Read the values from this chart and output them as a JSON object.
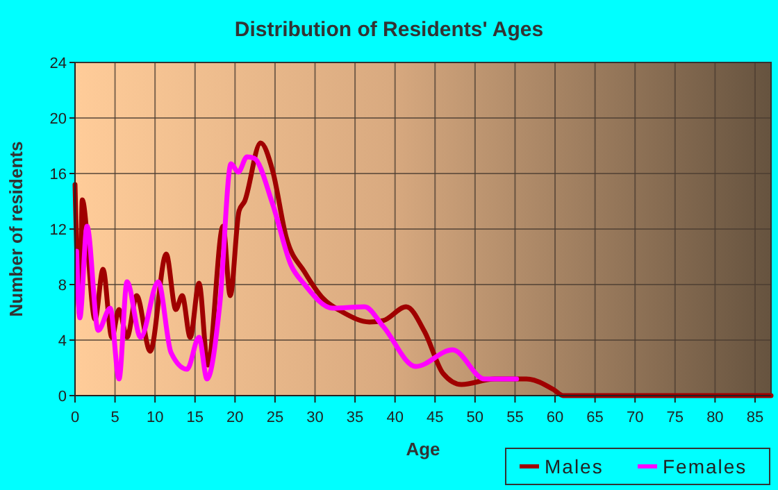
{
  "chart_data": {
    "type": "line",
    "title": "Distribution of Residents' Ages",
    "xlabel": "Age",
    "ylabel": "Number of residents",
    "xlim": [
      0,
      87
    ],
    "ylim": [
      0,
      24
    ],
    "xticks": [
      0,
      5,
      10,
      15,
      20,
      25,
      30,
      35,
      40,
      45,
      50,
      55,
      60,
      65,
      70,
      75,
      80,
      85
    ],
    "yticks": [
      0,
      4,
      8,
      12,
      16,
      20,
      24
    ],
    "grid": true,
    "legend": "bottom right",
    "line_style": "solid",
    "marker": "none",
    "series": [
      {
        "name": "Males",
        "color": "#a00000",
        "x": [
          0,
          0.6,
          0.9,
          2.5,
          3.5,
          4.6,
          5.5,
          6.5,
          7.7,
          9.4,
          11.4,
          12.6,
          13.4,
          14.4,
          15.5,
          16.6,
          18.5,
          19.4,
          20.5,
          21.2,
          23.2,
          24.7,
          26.4,
          28.7,
          31,
          33.5,
          36.8,
          38.5,
          41.4,
          43.7,
          46,
          48.3,
          52.4,
          56.4,
          59.9,
          61,
          70,
          80,
          87
        ],
        "values": [
          15.2,
          5.8,
          14.1,
          5.5,
          9.1,
          4.2,
          6.2,
          4.2,
          7.2,
          3.2,
          10.2,
          6.2,
          7.2,
          4.2,
          8.1,
          2.2,
          12.2,
          7.2,
          13.3,
          14,
          18.2,
          16.2,
          11.4,
          8.9,
          7,
          6,
          5.3,
          5.4,
          6.4,
          4.6,
          1.6,
          0.8,
          1.2,
          1.2,
          0.4,
          0,
          0,
          0,
          0
        ]
      },
      {
        "name": "Females",
        "color": "#ff00ff",
        "x": [
          0.2,
          0.6,
          1.5,
          2.9,
          4.4,
          5.5,
          6.5,
          8.2,
          10.4,
          12,
          14,
          15.5,
          16.5,
          18.1,
          19.5,
          20.4,
          21.5,
          22.4,
          24.7,
          27,
          28.7,
          32.2,
          36.2,
          38.5,
          42.6,
          47.2,
          51.2,
          55.2
        ],
        "values": [
          10.4,
          5.6,
          12.2,
          4.7,
          6.3,
          1.2,
          8.2,
          4.2,
          8.2,
          3.1,
          1.9,
          4.2,
          1.2,
          6.6,
          16.7,
          16.1,
          17.2,
          17.1,
          13.8,
          9.4,
          8,
          6.3,
          6.4,
          5,
          2.1,
          3.3,
          1.2,
          1.2
        ]
      }
    ]
  }
}
